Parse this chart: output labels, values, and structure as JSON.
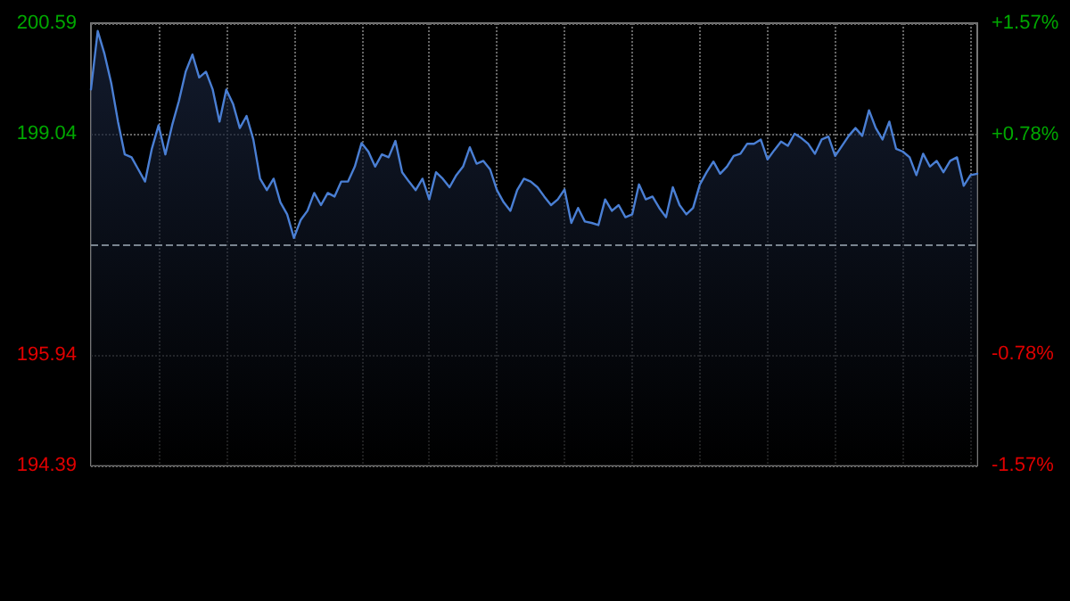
{
  "chart_data": {
    "type": "area",
    "categories": [
      null,
      null,
      null,
      null,
      null,
      null,
      null,
      null,
      null,
      null,
      null,
      null,
      null,
      null,
      null,
      null,
      null,
      null,
      null,
      null,
      null,
      null,
      null,
      null,
      null,
      null,
      null,
      null,
      null,
      null,
      null,
      null,
      null,
      null,
      null,
      null,
      null,
      null,
      null,
      null,
      null,
      null,
      null,
      null,
      null,
      null,
      null,
      null,
      null,
      null,
      null,
      null,
      null,
      null,
      null,
      null,
      null,
      null,
      null,
      null,
      null,
      null,
      null,
      null,
      null,
      null,
      null,
      null,
      null,
      null,
      null,
      null,
      null,
      null,
      null,
      null,
      null,
      null,
      null,
      null,
      null,
      null,
      null,
      null,
      null,
      null,
      null,
      null,
      null,
      null,
      null,
      null,
      null,
      null,
      null,
      null,
      null,
      null,
      null,
      null,
      null,
      null,
      null,
      null,
      null,
      null,
      null,
      null,
      null,
      null,
      null,
      null,
      null,
      null,
      null,
      null,
      null,
      null,
      null,
      null,
      null,
      null,
      null,
      null,
      null,
      null,
      null,
      null,
      null,
      null,
      null,
      null
    ],
    "series": [
      {
        "color": "#4a7fd4",
        "values": [
          199.66,
          200.48,
          200.16,
          199.75,
          199.21,
          198.75,
          198.71,
          198.54,
          198.37,
          198.83,
          199.16,
          198.75,
          199.16,
          199.5,
          199.91,
          200.15,
          199.83,
          199.91,
          199.66,
          199.21,
          199.66,
          199.46,
          199.12,
          199.29,
          198.96,
          198.41,
          198.25,
          198.41,
          198.08,
          197.91,
          197.58,
          197.83,
          197.96,
          198.21,
          198.04,
          198.21,
          198.16,
          198.37,
          198.37,
          198.58,
          198.91,
          198.79,
          198.58,
          198.75,
          198.71,
          198.94,
          198.5,
          198.37,
          198.25,
          198.41,
          198.12,
          198.5,
          198.41,
          198.29,
          198.46,
          198.58,
          198.85,
          198.62,
          198.66,
          198.54,
          198.25,
          198.08,
          197.96,
          198.25,
          198.41,
          198.37,
          198.29,
          198.16,
          198.04,
          198.12,
          198.26,
          197.79,
          198.0,
          197.81,
          197.79,
          197.76,
          198.12,
          197.96,
          198.04,
          197.87,
          197.91,
          198.33,
          198.12,
          198.16,
          198.0,
          197.87,
          198.29,
          198.04,
          197.91,
          198.0,
          198.33,
          198.5,
          198.65,
          198.48,
          198.58,
          198.73,
          198.76,
          198.9,
          198.9,
          198.96,
          198.68,
          198.81,
          198.93,
          198.87,
          199.04,
          198.98,
          198.9,
          198.76,
          198.96,
          199.0,
          198.73,
          198.87,
          199.01,
          199.12,
          199.01,
          199.37,
          199.12,
          198.96,
          199.21,
          198.83,
          198.79,
          198.71,
          198.46,
          198.76,
          198.58,
          198.66,
          198.5,
          198.66,
          198.71,
          198.31,
          198.46,
          198.48
        ]
      }
    ],
    "ylim": [
      194.39,
      200.59
    ],
    "yticks": [
      194.39,
      195.94,
      199.04,
      200.59
    ],
    "y2lim": [
      -1.57,
      1.57
    ],
    "y2ticks": [
      {
        "value": -1.57,
        "label": "-1.57%"
      },
      {
        "value": -0.78,
        "label": "-0.78%"
      },
      {
        "value": 0.78,
        "label": "+0.78%"
      },
      {
        "value": 1.57,
        "label": "+1.57%"
      }
    ],
    "ref_lines": [
      {
        "axis": "y",
        "value": 197.49,
        "label": null,
        "color": "#7a8590",
        "line_style": "dashed"
      }
    ],
    "grid": true,
    "marker": "none",
    "line_style": "solid",
    "tick_labels": "y"
  }
}
